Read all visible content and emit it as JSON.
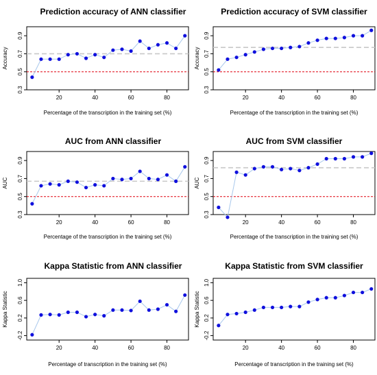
{
  "chart_data": [
    {
      "type": "line",
      "title": "Prediction accuracy of ANN classifier",
      "xlabel": "Percentage of the transcription in the training set (%)",
      "ylabel": "Accuracy",
      "xlim": [
        2,
        92
      ],
      "ylim": [
        0.3,
        1.0
      ],
      "xticks": [
        20,
        40,
        60,
        80
      ],
      "yticks": [
        0.3,
        0.5,
        0.7,
        0.9
      ],
      "series": [
        {
          "x": [
            5,
            10,
            15,
            20,
            25,
            30,
            35,
            40,
            45,
            50,
            55,
            60,
            65,
            70,
            75,
            80,
            85,
            90
          ],
          "y": [
            0.44,
            0.64,
            0.64,
            0.64,
            0.69,
            0.7,
            0.65,
            0.69,
            0.66,
            0.74,
            0.75,
            0.73,
            0.84,
            0.76,
            0.8,
            0.82,
            0.76,
            0.9
          ]
        }
      ],
      "hlines": [
        {
          "y": 0.7,
          "color": "#c8c8c8",
          "style": "dashed"
        },
        {
          "y": 0.5,
          "color": "#e0000f",
          "style": "dashed"
        }
      ]
    },
    {
      "type": "line",
      "title": "Prediction accuracy of SVM classifier",
      "xlabel": "Percentage of the transcription in the training set (%)",
      "ylabel": "Accuracy",
      "xlim": [
        2,
        92
      ],
      "ylim": [
        0.3,
        1.0
      ],
      "xticks": [
        20,
        40,
        60,
        80
      ],
      "yticks": [
        0.3,
        0.5,
        0.7,
        0.9
      ],
      "series": [
        {
          "x": [
            5,
            10,
            15,
            20,
            25,
            30,
            35,
            40,
            45,
            50,
            55,
            60,
            65,
            70,
            75,
            80,
            85,
            90
          ],
          "y": [
            0.52,
            0.64,
            0.66,
            0.69,
            0.72,
            0.75,
            0.76,
            0.76,
            0.77,
            0.78,
            0.82,
            0.85,
            0.87,
            0.87,
            0.88,
            0.9,
            0.9,
            0.96
          ]
        }
      ],
      "hlines": [
        {
          "y": 0.77,
          "color": "#c8c8c8",
          "style": "dashed"
        },
        {
          "y": 0.5,
          "color": "#e0000f",
          "style": "dashed"
        }
      ]
    },
    {
      "type": "line",
      "title": "AUC from ANN classifier",
      "xlabel": "Percentage of the transcription in the training set (%)",
      "ylabel": "AUC",
      "xlim": [
        2,
        92
      ],
      "ylim": [
        0.3,
        1.0
      ],
      "xticks": [
        20,
        40,
        60,
        80
      ],
      "yticks": [
        0.3,
        0.5,
        0.7,
        0.9
      ],
      "series": [
        {
          "x": [
            5,
            10,
            15,
            20,
            25,
            30,
            35,
            40,
            45,
            50,
            55,
            60,
            65,
            70,
            75,
            80,
            85,
            90
          ],
          "y": [
            0.42,
            0.62,
            0.64,
            0.63,
            0.67,
            0.66,
            0.6,
            0.63,
            0.62,
            0.7,
            0.69,
            0.7,
            0.78,
            0.7,
            0.69,
            0.74,
            0.67,
            0.83
          ]
        }
      ],
      "hlines": [
        {
          "y": 0.67,
          "color": "#c8c8c8",
          "style": "dashed"
        },
        {
          "y": 0.5,
          "color": "#e0000f",
          "style": "dashed"
        }
      ]
    },
    {
      "type": "line",
      "title": "AUC from SVM classifier",
      "xlabel": "Percentage of the transcription in the training set (%)",
      "ylabel": "AUC",
      "xlim": [
        2,
        92
      ],
      "ylim": [
        0.3,
        1.0
      ],
      "xticks": [
        20,
        40,
        60,
        80
      ],
      "yticks": [
        0.3,
        0.5,
        0.7,
        0.9
      ],
      "series": [
        {
          "x": [
            5,
            10,
            15,
            20,
            25,
            30,
            35,
            40,
            45,
            50,
            55,
            60,
            65,
            70,
            75,
            80,
            85,
            90
          ],
          "y": [
            0.38,
            0.27,
            0.77,
            0.74,
            0.81,
            0.83,
            0.83,
            0.8,
            0.81,
            0.79,
            0.82,
            0.86,
            0.92,
            0.92,
            0.92,
            0.94,
            0.94,
            0.98
          ]
        }
      ],
      "hlines": [
        {
          "y": 0.82,
          "color": "#c8c8c8",
          "style": "dashed"
        },
        {
          "y": 0.5,
          "color": "#e0000f",
          "style": "dashed"
        }
      ]
    },
    {
      "type": "line",
      "title": "Kappa Statistic from ANN classifier",
      "xlabel": "Percentage of transcription in the training set (%)",
      "ylabel": "Kappa Statistic",
      "xlim": [
        2,
        92
      ],
      "ylim": [
        -0.3,
        1.1
      ],
      "xticks": [
        20,
        40,
        60,
        80
      ],
      "yticks": [
        -0.2,
        0.2,
        0.6,
        1.0
      ],
      "series": [
        {
          "x": [
            5,
            10,
            15,
            20,
            25,
            30,
            35,
            40,
            45,
            50,
            55,
            60,
            65,
            70,
            75,
            80,
            85,
            90
          ],
          "y": [
            -0.18,
            0.27,
            0.28,
            0.27,
            0.33,
            0.33,
            0.23,
            0.28,
            0.25,
            0.38,
            0.38,
            0.37,
            0.58,
            0.38,
            0.4,
            0.5,
            0.35,
            0.72
          ]
        }
      ],
      "hlines": []
    },
    {
      "type": "line",
      "title": "Kappa Statistic from SVM classifier",
      "xlabel": "Percentage of transcription in the training set (%)",
      "ylabel": "Kappa Statistic",
      "xlim": [
        2,
        92
      ],
      "ylim": [
        -0.3,
        1.1
      ],
      "xticks": [
        20,
        40,
        60,
        80
      ],
      "yticks": [
        -0.2,
        0.2,
        0.6,
        1.0
      ],
      "series": [
        {
          "x": [
            5,
            10,
            15,
            20,
            25,
            30,
            35,
            40,
            45,
            50,
            55,
            60,
            65,
            70,
            75,
            80,
            85,
            90
          ],
          "y": [
            0.03,
            0.28,
            0.3,
            0.33,
            0.38,
            0.44,
            0.44,
            0.44,
            0.46,
            0.46,
            0.56,
            0.62,
            0.66,
            0.66,
            0.71,
            0.78,
            0.78,
            0.86
          ]
        }
      ],
      "hlines": []
    }
  ],
  "colors": {
    "line": "#a8c8ec",
    "point": "#1010dd",
    "mean_line": "#c8c8c8",
    "chance_line": "#e0000f",
    "axis": "#000000"
  }
}
